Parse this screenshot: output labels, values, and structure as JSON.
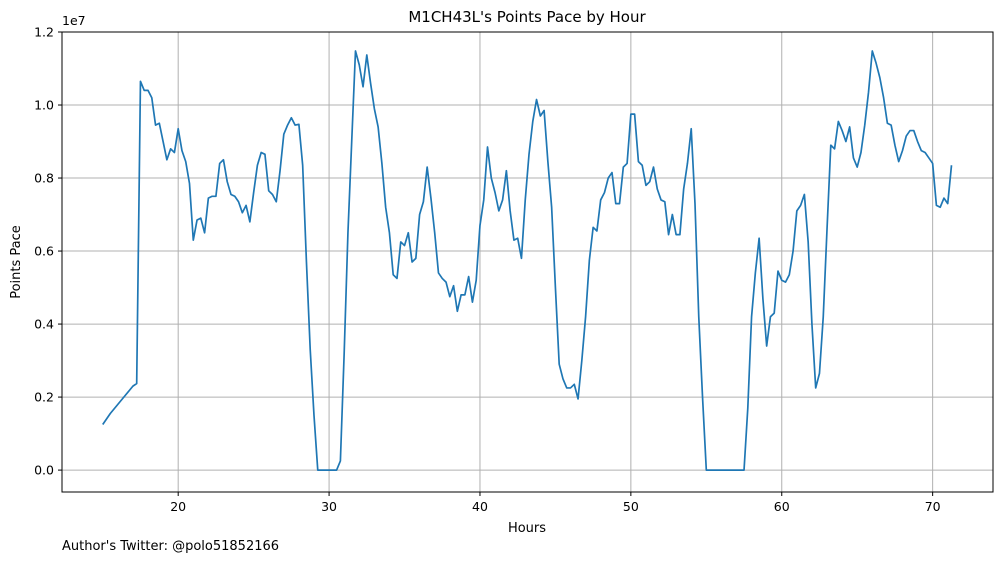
{
  "chart_data": {
    "type": "line",
    "title": "M1CH43L's Points Pace by Hour",
    "xlabel": "Hours",
    "ylabel": "Points Pace",
    "y_multiplier_label": "1e7",
    "xlim": [
      12.3,
      74.0
    ],
    "ylim": [
      -0.06,
      1.2
    ],
    "xticks": [
      20,
      30,
      40,
      50,
      60,
      70
    ],
    "yticks": [
      0.0,
      0.2,
      0.4,
      0.6,
      0.8,
      1.0,
      1.2
    ],
    "ytick_labels": [
      "0.0",
      "0.2",
      "0.4",
      "0.6",
      "0.8",
      "1.0",
      "1.2"
    ],
    "grid": true,
    "line_color": "#1f77b4",
    "series": [
      {
        "x": [
          15.0,
          15.5,
          16.0,
          16.5,
          17.0,
          17.25,
          17.5,
          17.75,
          18.0,
          18.25,
          18.5,
          18.75,
          19.0,
          19.25,
          19.5,
          19.75,
          20.0,
          20.25,
          20.5,
          20.75,
          21.0,
          21.25,
          21.5,
          21.75,
          22.0,
          22.25,
          22.5,
          22.75,
          23.0,
          23.25,
          23.5,
          23.75,
          24.0,
          24.25,
          24.5,
          24.75,
          25.0,
          25.25,
          25.5,
          25.75,
          26.0,
          26.25,
          26.5,
          26.75,
          27.0,
          27.25,
          27.5,
          27.75,
          28.0,
          28.25,
          28.5,
          28.75,
          29.0,
          29.25,
          29.5,
          30.0,
          30.5,
          30.75,
          31.0,
          31.25,
          31.5,
          31.75,
          32.0,
          32.25,
          32.5,
          32.75,
          33.0,
          33.25,
          33.5,
          33.75,
          34.0,
          34.25,
          34.5,
          34.75,
          35.0,
          35.25,
          35.5,
          35.75,
          36.0,
          36.25,
          36.5,
          36.75,
          37.0,
          37.25,
          37.5,
          37.75,
          38.0,
          38.25,
          38.5,
          38.75,
          39.0,
          39.25,
          39.5,
          39.75,
          40.0,
          40.25,
          40.5,
          40.75,
          41.0,
          41.25,
          41.5,
          41.75,
          42.0,
          42.25,
          42.5,
          42.75,
          43.0,
          43.25,
          43.5,
          43.75,
          44.0,
          44.25,
          44.5,
          44.75,
          45.0,
          45.25,
          45.5,
          45.75,
          46.0,
          46.25,
          46.5,
          46.75,
          47.0,
          47.25,
          47.5,
          47.75,
          48.0,
          48.25,
          48.5,
          48.75,
          49.0,
          49.25,
          49.5,
          49.75,
          50.0,
          50.25,
          50.5,
          50.75,
          51.0,
          51.25,
          51.5,
          51.75,
          52.0,
          52.25,
          52.5,
          52.75,
          53.0,
          53.25,
          53.5,
          53.75,
          54.0,
          54.25,
          54.5,
          54.75,
          55.0,
          55.5,
          56.0,
          56.5,
          57.0,
          57.5,
          57.75,
          58.0,
          58.25,
          58.5,
          58.75,
          59.0,
          59.25,
          59.5,
          59.75,
          60.0,
          60.25,
          60.5,
          60.75,
          61.0,
          61.25,
          61.5,
          61.75,
          62.0,
          62.25,
          62.5,
          62.75,
          63.0,
          63.25,
          63.5,
          63.75,
          64.0,
          64.25,
          64.5,
          64.75,
          65.0,
          65.25,
          65.5,
          65.75,
          66.0,
          66.25,
          66.5,
          66.75,
          67.0,
          67.25,
          67.5,
          67.75,
          68.0,
          68.25,
          68.5,
          68.75,
          69.0,
          69.25,
          69.5,
          69.75,
          70.0,
          70.25,
          70.5,
          70.75,
          71.0,
          71.25
        ],
        "y": [
          0.125,
          0.155,
          0.18,
          0.205,
          0.23,
          0.237,
          1.065,
          1.04,
          1.04,
          1.02,
          0.945,
          0.95,
          0.9,
          0.85,
          0.88,
          0.87,
          0.935,
          0.875,
          0.845,
          0.785,
          0.63,
          0.685,
          0.69,
          0.65,
          0.745,
          0.75,
          0.75,
          0.84,
          0.85,
          0.79,
          0.755,
          0.75,
          0.735,
          0.705,
          0.725,
          0.68,
          0.76,
          0.835,
          0.87,
          0.865,
          0.765,
          0.755,
          0.735,
          0.82,
          0.92,
          0.945,
          0.965,
          0.945,
          0.947,
          0.835,
          0.57,
          0.33,
          0.15,
          0.0,
          0.0,
          0.0,
          0.0,
          0.025,
          0.32,
          0.65,
          0.9,
          1.148,
          1.11,
          1.05,
          1.137,
          1.06,
          0.99,
          0.94,
          0.84,
          0.72,
          0.65,
          0.535,
          0.525,
          0.625,
          0.615,
          0.65,
          0.57,
          0.58,
          0.7,
          0.735,
          0.83,
          0.745,
          0.65,
          0.54,
          0.525,
          0.515,
          0.475,
          0.505,
          0.435,
          0.48,
          0.48,
          0.53,
          0.46,
          0.52,
          0.67,
          0.74,
          0.885,
          0.8,
          0.76,
          0.71,
          0.74,
          0.82,
          0.71,
          0.63,
          0.635,
          0.58,
          0.74,
          0.865,
          0.955,
          1.015,
          0.97,
          0.985,
          0.845,
          0.72,
          0.5,
          0.29,
          0.25,
          0.225,
          0.225,
          0.235,
          0.195,
          0.3,
          0.42,
          0.575,
          0.665,
          0.655,
          0.74,
          0.76,
          0.8,
          0.815,
          0.73,
          0.73,
          0.83,
          0.84,
          0.975,
          0.975,
          0.845,
          0.835,
          0.78,
          0.79,
          0.83,
          0.77,
          0.74,
          0.735,
          0.645,
          0.7,
          0.645,
          0.645,
          0.77,
          0.84,
          0.935,
          0.73,
          0.42,
          0.2,
          0.0,
          0.0,
          0.0,
          0.0,
          0.0,
          0.0,
          0.17,
          0.42,
          0.54,
          0.635,
          0.47,
          0.34,
          0.42,
          0.43,
          0.545,
          0.52,
          0.515,
          0.535,
          0.6,
          0.71,
          0.725,
          0.755,
          0.625,
          0.4,
          0.225,
          0.265,
          0.42,
          0.66,
          0.89,
          0.88,
          0.955,
          0.93,
          0.9,
          0.94,
          0.855,
          0.83,
          0.87,
          0.945,
          1.035,
          1.148,
          1.115,
          1.075,
          1.02,
          0.95,
          0.945,
          0.89,
          0.845,
          0.875,
          0.915,
          0.93,
          0.93,
          0.9,
          0.875,
          0.87,
          0.855,
          0.84,
          0.725,
          0.72,
          0.745,
          0.73,
          0.835
        ]
      }
    ]
  },
  "footer": {
    "credit": "Author's Twitter: @polo51852166"
  }
}
